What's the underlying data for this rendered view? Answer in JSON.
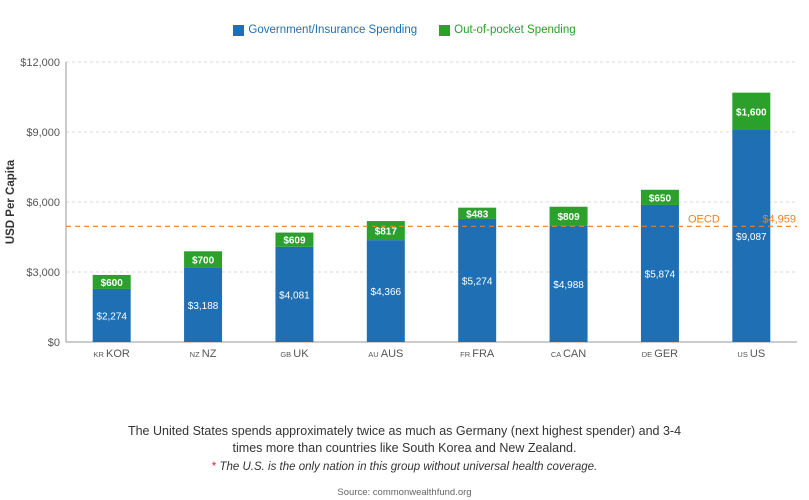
{
  "chart_data": {
    "type": "bar",
    "stacked": true,
    "categories": [
      "KOR",
      "NZ",
      "UK",
      "AUS",
      "FRA",
      "CAN",
      "GER",
      "US"
    ],
    "country_codes": [
      "KR",
      "NZ",
      "GB",
      "AU",
      "FR",
      "CA",
      "DE",
      "US"
    ],
    "series": [
      {
        "name": "Government/Insurance Spending",
        "color": "#1f6fb5",
        "values": [
          2274,
          3188,
          4081,
          4366,
          5274,
          4988,
          5874,
          9087
        ],
        "labels": [
          "$2,274",
          "$3,188",
          "$4,081",
          "$4,366",
          "$5,274",
          "$4,988",
          "$5,874",
          "$9,087"
        ]
      },
      {
        "name": "Out-of-pocket Spending",
        "color": "#2ba02b",
        "values": [
          600,
          700,
          609,
          817,
          483,
          809,
          650,
          1600
        ],
        "labels": [
          "$600",
          "$700",
          "$609",
          "$817",
          "$483",
          "$809",
          "$650",
          "$1,600"
        ]
      }
    ],
    "ylabel": "USD Per Capita",
    "ylim": [
      0,
      12000
    ],
    "yticks": [
      0,
      3000,
      6000,
      9000,
      12000
    ],
    "ytick_labels": [
      "$0",
      "$3,000",
      "$6,000",
      "$9,000",
      "$12,000"
    ],
    "grid": true,
    "legend_position": "top-center",
    "reference_line": {
      "label": "OECD",
      "value": 4959,
      "value_label": "$4,959",
      "color": "#f07f1f"
    }
  },
  "caption": "The United States spends approximately twice as much as Germany (next highest spender) and 3-4 times more than countries like South Korea and New Zealand.",
  "footnote_star": "*",
  "footnote": "The U.S. is the only nation in this group without universal health coverage.",
  "source": "Source: commonwealthfund.org"
}
